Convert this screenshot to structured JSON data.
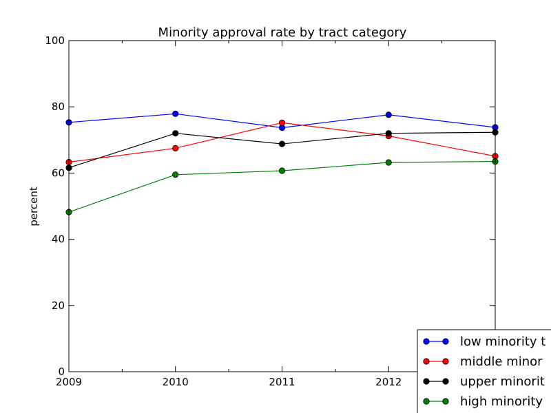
{
  "chart_data": {
    "type": "line",
    "title": "Minority approval rate by tract category",
    "xlabel": "",
    "ylabel": "percent",
    "x": [
      2009,
      2010,
      2011,
      2012,
      2013
    ],
    "xlim": [
      2009,
      2013
    ],
    "ylim": [
      0,
      100
    ],
    "x_ticks": [
      2009,
      2010,
      2011,
      2012
    ],
    "x_tick_labels": [
      "2009",
      "2010",
      "2011",
      "2012"
    ],
    "y_ticks": [
      0,
      20,
      40,
      60,
      80,
      100
    ],
    "y_tick_labels": [
      "0",
      "20",
      "40",
      "60",
      "80",
      "100"
    ],
    "grid": false,
    "legend_position": "bottom-right",
    "series": [
      {
        "name": "low minority tracts",
        "legend_label": "low minority t",
        "color": "#0000ff",
        "values": [
          75.3,
          77.9,
          73.7,
          77.6,
          73.8
        ]
      },
      {
        "name": "middle minority tracts",
        "legend_label": "middle minor",
        "color": "#ff0000",
        "values": [
          63.3,
          67.5,
          75.2,
          71.2,
          65.1
        ]
      },
      {
        "name": "upper minority tracts",
        "legend_label": "upper minorit",
        "color": "#000000",
        "values": [
          61.6,
          72.0,
          68.8,
          72.0,
          72.3
        ]
      },
      {
        "name": "high minority tracts",
        "legend_label": "high minority",
        "color": "#008000",
        "values": [
          48.2,
          59.5,
          60.7,
          63.2,
          63.5
        ]
      }
    ]
  }
}
